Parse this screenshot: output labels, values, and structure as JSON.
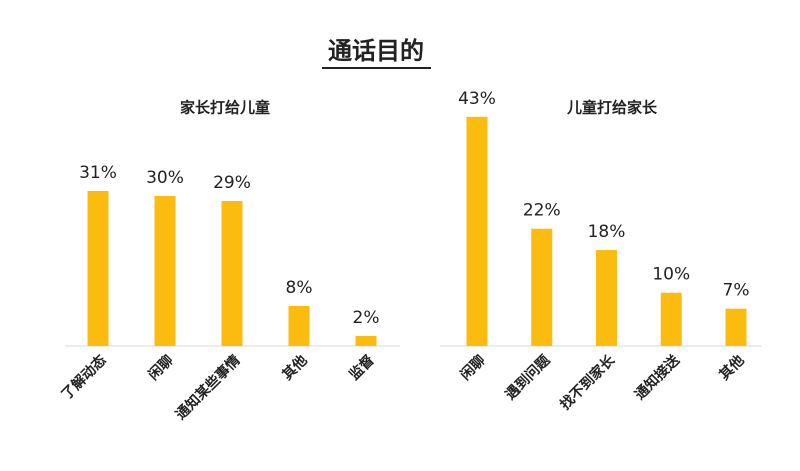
{
  "title": "通话目的",
  "chart_data": [
    {
      "type": "bar",
      "title": "家长打给儿童",
      "categories": [
        "了解动态",
        "闲聊",
        "通知某些事情",
        "其他",
        "监督"
      ],
      "values": [
        31,
        30,
        29,
        8,
        2
      ],
      "value_labels": [
        "31%",
        "30%",
        "29%",
        "8%",
        "2%"
      ],
      "color": "#fbbc0f"
    },
    {
      "type": "bar",
      "title": "儿童打给家长",
      "categories": [
        "闲聊",
        "遇到问题",
        "找不到家长",
        "通知接送",
        "其他"
      ],
      "values": [
        43,
        22,
        18,
        10,
        7
      ],
      "value_labels": [
        "43%",
        "22%",
        "18%",
        "10%",
        "7%"
      ],
      "color": "#fbbc0f"
    }
  ]
}
